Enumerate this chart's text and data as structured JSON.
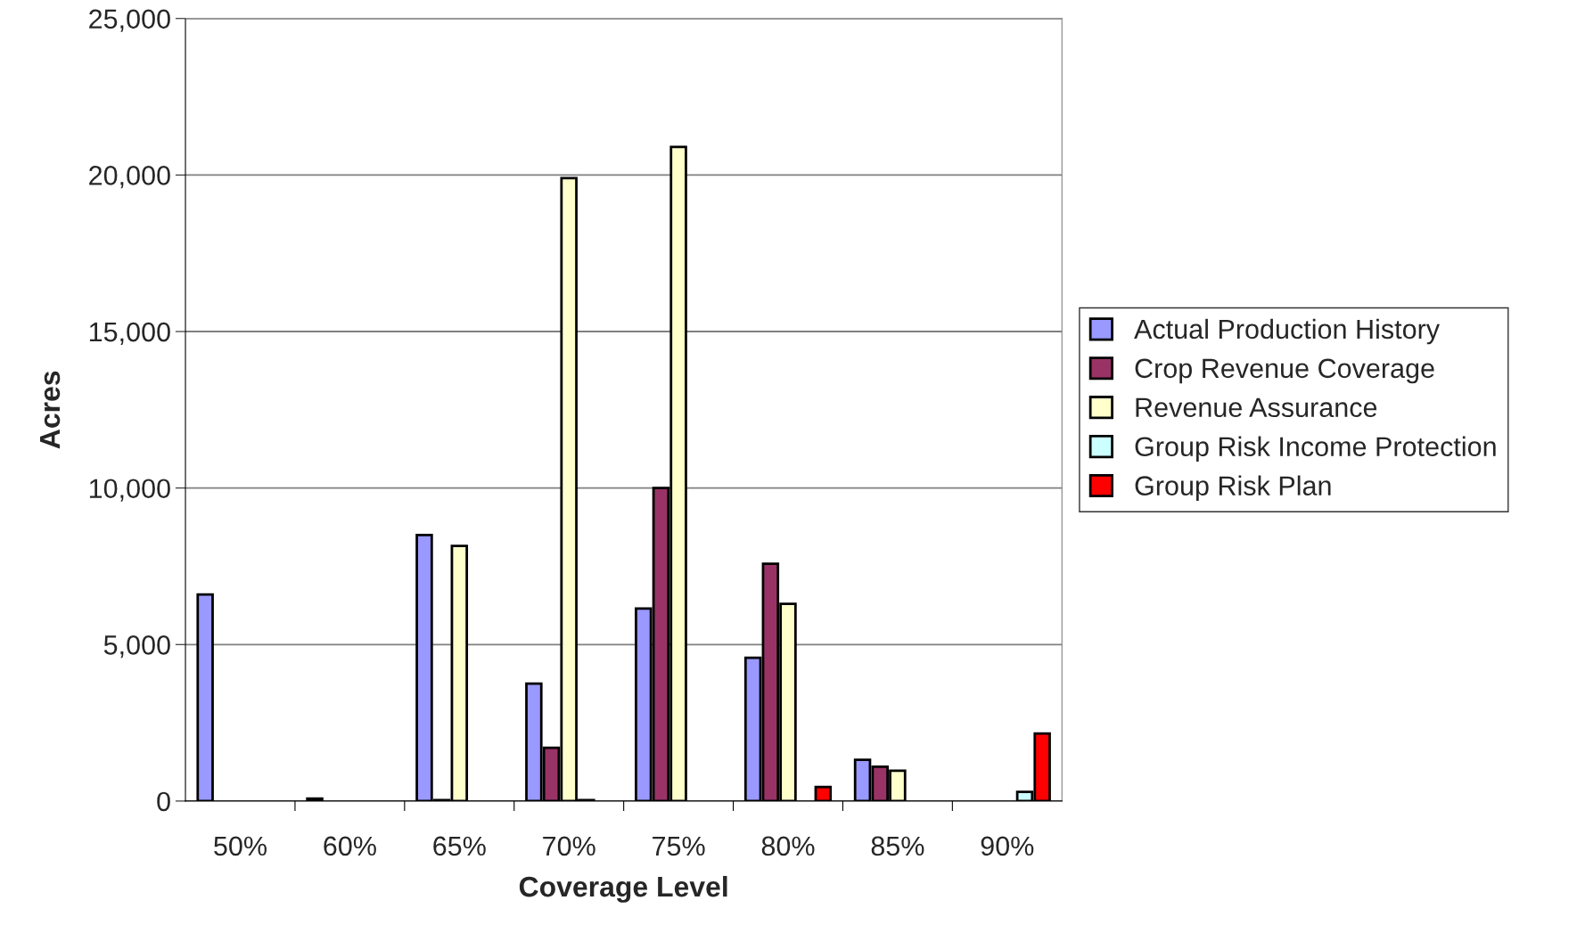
{
  "chart_data": {
    "type": "bar",
    "xlabel": "Coverage Level",
    "ylabel": "Acres",
    "categories": [
      "50%",
      "60%",
      "65%",
      "70%",
      "75%",
      "80%",
      "85%",
      "90%"
    ],
    "series": [
      {
        "name": "Actual Production History",
        "color": "#9999ff",
        "values": [
          6600,
          80,
          8500,
          3750,
          6150,
          4580,
          1320,
          null
        ]
      },
      {
        "name": "Crop Revenue Coverage",
        "color": "#993366",
        "values": [
          null,
          null,
          30,
          1700,
          10000,
          7580,
          1100,
          null
        ]
      },
      {
        "name": "Revenue Assurance",
        "color": "#ffffcc",
        "values": [
          null,
          null,
          8150,
          19900,
          20900,
          6300,
          970,
          null
        ]
      },
      {
        "name": "Group Risk Income Protection",
        "color": "#ccffff",
        "values": [
          null,
          null,
          null,
          30,
          null,
          null,
          null,
          290
        ]
      },
      {
        "name": "Group Risk Plan",
        "color": "#ff0000",
        "values": [
          null,
          null,
          null,
          null,
          null,
          450,
          null,
          2160
        ]
      }
    ],
    "ylim": [
      0,
      25000
    ],
    "yticks": [
      {
        "value": 0,
        "label": "0"
      },
      {
        "value": 5000,
        "label": "5,000"
      },
      {
        "value": 10000,
        "label": "10,000"
      },
      {
        "value": 15000,
        "label": "15,000"
      },
      {
        "value": 20000,
        "label": "20,000"
      },
      {
        "value": 25000,
        "label": "25,000"
      }
    ],
    "grid": "y",
    "legend": "right"
  }
}
